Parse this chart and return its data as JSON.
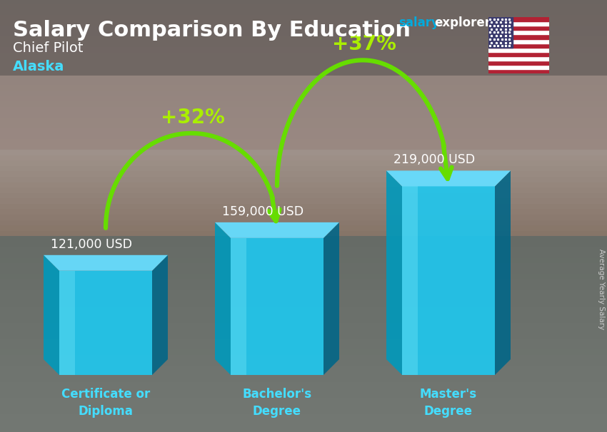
{
  "title": "Salary Comparison By Education",
  "subtitle": "Chief Pilot",
  "location": "Alaska",
  "categories": [
    "Certificate or\nDiploma",
    "Bachelor's\nDegree",
    "Master's\nDegree"
  ],
  "values": [
    121000,
    159000,
    219000
  ],
  "labels": [
    "121,000 USD",
    "159,000 USD",
    "219,000 USD"
  ],
  "pct_changes": [
    "+32%",
    "+37%"
  ],
  "bar_front_color": "#1ec8f0",
  "bar_left_color": "#0099bb",
  "bar_right_color": "#006688",
  "bar_top_color": "#66ddff",
  "bg_top_color": "#8a9090",
  "bg_mid_color": "#9a8870",
  "bg_bottom_color": "#6a7070",
  "title_color": "#ffffff",
  "subtitle_color": "#ffffff",
  "location_color": "#44ddff",
  "label_color": "#ffffff",
  "category_color": "#44ddff",
  "arrow_color": "#66dd00",
  "pct_color": "#aaee00",
  "watermark_salary_color": "#00aadd",
  "watermark_explorer_color": "#ffffff",
  "watermark_com_color": "#00aadd",
  "side_label": "Average Yearly Salary",
  "side_label_color": "#cccccc"
}
